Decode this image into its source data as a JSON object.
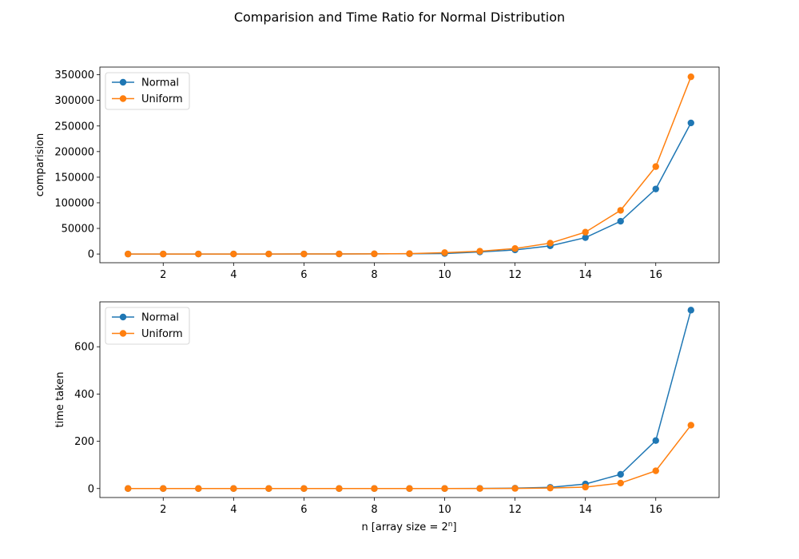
{
  "figure": {
    "suptitle": "Comparision and Time Ratio for Normal Distribution",
    "xlabel_prefix": "n [array size = 2",
    "xlabel_sup": "n",
    "xlabel_suffix": "]"
  },
  "chart_data": [
    {
      "type": "line",
      "title": "",
      "xlabel": "",
      "ylabel": "comparision",
      "x": [
        1,
        2,
        3,
        4,
        5,
        6,
        7,
        8,
        9,
        10,
        11,
        12,
        13,
        14,
        15,
        16,
        17
      ],
      "xlim": [
        0.2,
        17.8
      ],
      "ylim": [
        -17000,
        365000
      ],
      "xticks": [
        2,
        4,
        6,
        8,
        10,
        12,
        14,
        16
      ],
      "yticks": [
        0,
        50000,
        100000,
        150000,
        200000,
        250000,
        300000,
        350000
      ],
      "legend_position": "upper-left",
      "markers": "circle",
      "grid": false,
      "series": [
        {
          "name": "Normal",
          "color": "#1f77b4",
          "values": [
            2,
            4,
            8,
            16,
            32,
            64,
            128,
            256,
            512,
            1000,
            4000,
            8000,
            16000,
            32000,
            64000,
            127000,
            256000
          ]
        },
        {
          "name": "Uniform",
          "color": "#ff7f0e",
          "values": [
            3,
            6,
            12,
            24,
            48,
            96,
            192,
            384,
            768,
            2700,
            5400,
            10700,
            21300,
            42700,
            85300,
            170700,
            346000
          ]
        }
      ]
    },
    {
      "type": "line",
      "title": "",
      "xlabel": "n [array size = 2^n]",
      "ylabel": "time taken",
      "x": [
        1,
        2,
        3,
        4,
        5,
        6,
        7,
        8,
        9,
        10,
        11,
        12,
        13,
        14,
        15,
        16,
        17
      ],
      "xlim": [
        0.2,
        17.8
      ],
      "ylim": [
        -38,
        790
      ],
      "xticks": [
        2,
        4,
        6,
        8,
        10,
        12,
        14,
        16
      ],
      "yticks": [
        0,
        200,
        400,
        600
      ],
      "legend_position": "upper-left",
      "markers": "circle",
      "grid": false,
      "series": [
        {
          "name": "Normal",
          "color": "#1f77b4",
          "values": [
            0,
            0,
            0,
            0,
            0,
            0,
            0,
            0,
            0,
            0,
            0.5,
            1.5,
            5,
            19,
            60,
            203,
            755
          ]
        },
        {
          "name": "Uniform",
          "color": "#ff7f0e",
          "values": [
            0,
            0,
            0,
            0,
            0,
            0,
            0,
            0,
            0,
            0,
            0.2,
            0.5,
            2,
            6,
            23,
            75,
            268
          ]
        }
      ]
    }
  ]
}
